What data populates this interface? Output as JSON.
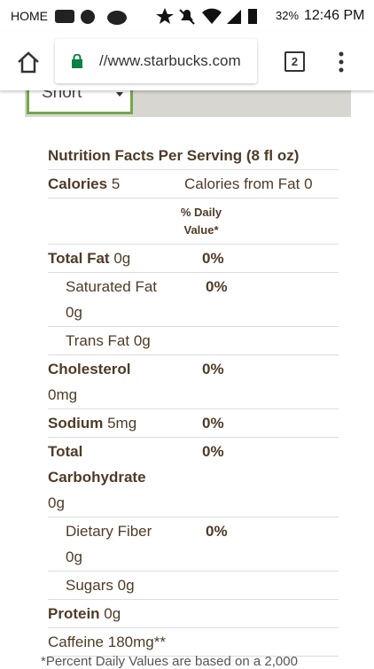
{
  "status_bar": {
    "carrier": "HOME",
    "battery": "32%",
    "time": "12:46 PM"
  },
  "browser": {
    "url": "//www.starbucks.com",
    "tab_count": "2"
  },
  "size_select": "Short",
  "nutrition": {
    "title": "Nutrition Facts Per Serving (8 fl oz)",
    "calories_label": "Calories",
    "calories_value": "5",
    "calories_from_fat": "Calories from Fat 0",
    "dv_header": "% Daily Value*",
    "rows": [
      {
        "label": "Total Fat",
        "amount": "0g",
        "dv": "0%",
        "indent": false
      },
      {
        "label": "Saturated Fat",
        "amount": "0g",
        "dv": "0%",
        "indent": true
      },
      {
        "label": "Trans Fat",
        "amount": "0g",
        "indent": true
      },
      {
        "label": "Cholesterol",
        "amount": "0mg",
        "dv": "0%",
        "indent": false
      },
      {
        "label": "Sodium",
        "amount": "5mg",
        "dv": "0%",
        "indent": false
      },
      {
        "label": "Total Carbohydrate",
        "amount": "0g",
        "dv": "0%",
        "indent": false
      },
      {
        "label": "Dietary Fiber",
        "amount": "0g",
        "dv": "0%",
        "indent": true
      },
      {
        "label": "Sugars",
        "amount": "0g",
        "indent": true
      },
      {
        "label": "Protein",
        "amount": "0g",
        "indent": false
      }
    ],
    "caffeine": "Caffeine 180mg**",
    "footnote": "*Percent Daily Values are based on a 2,000"
  }
}
